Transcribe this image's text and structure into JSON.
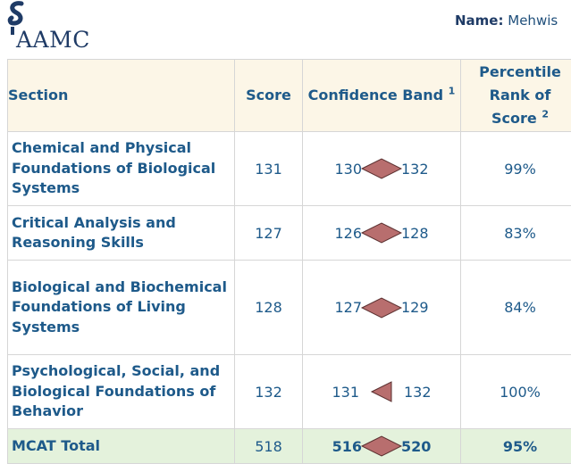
{
  "header": {
    "logo_text": "AAMC",
    "name_label": "Name:",
    "name_value": "Mehwis"
  },
  "table": {
    "headers": {
      "section": "Section",
      "score": "Score",
      "band": "Confidence Band",
      "band_note": "1",
      "percentile_line1": "Percentile",
      "percentile_line2": "Rank of",
      "percentile_line3": "Score",
      "percentile_note": "2"
    },
    "rows": [
      {
        "section": "Chemical and Physical Foundations of Biological Systems",
        "score": "131",
        "band_low": "130",
        "band_high": "132",
        "percentile": "99%"
      },
      {
        "section": "Critical Analysis and Reasoning Skills",
        "score": "127",
        "band_low": "126",
        "band_high": "128",
        "percentile": "83%"
      },
      {
        "section": "Biological and Biochemical Foundations of Living Systems",
        "score": "128",
        "band_low": "127",
        "band_high": "129",
        "percentile": "84%"
      },
      {
        "section": "Psychological, Social, and Biological Foundations of Behavior",
        "score": "132",
        "band_low": "131",
        "band_high": "132",
        "percentile": "100%"
      }
    ],
    "total": {
      "section": "MCAT Total",
      "score": "518",
      "band_low": "516",
      "band_high": "520",
      "percentile": "95%"
    }
  },
  "colors": {
    "header_bg": "#fcf6e7",
    "total_bg": "#e4f2dc",
    "text": "#1e5a8a",
    "diamond": "#b86e6e"
  },
  "icons": [
    "aamc-logo-mark",
    "confidence-diamond-icon",
    "confidence-arrow-icon"
  ]
}
